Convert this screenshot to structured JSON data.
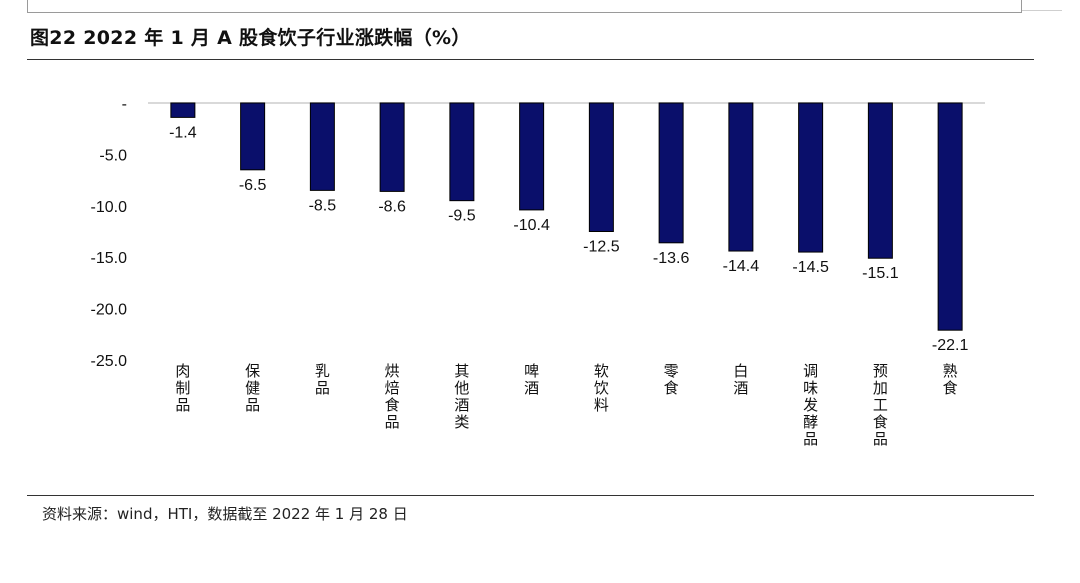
{
  "header": {
    "title": "图22 2022 年 1 月 A 股食饮子行业涨跌幅（%）"
  },
  "footer": {
    "source": "资料来源：wind，HTI，数据截至 2022 年 1 月 28 日"
  },
  "colors": {
    "bar_fill": "#0a0f6b",
    "bar_stroke": "#000000",
    "zero_line": "#d9d9d9"
  },
  "chart_data": {
    "type": "bar",
    "categories": [
      "肉制品",
      "保健品",
      "乳品",
      "烘焙食品",
      "其他酒类",
      "啤酒",
      "软饮料",
      "零食",
      "白酒",
      "调味发酵品",
      "预加工食品",
      "熟食"
    ],
    "values": [
      -1.4,
      -6.5,
      -8.5,
      -8.6,
      -9.5,
      -10.4,
      -12.5,
      -13.6,
      -14.4,
      -14.5,
      -15.1,
      -22.1
    ],
    "data_labels": [
      "-1.4",
      "-6.5",
      "-8.5",
      "-8.6",
      "-9.5",
      "-10.4",
      "-12.5",
      "-13.6",
      "-14.4",
      "-14.5",
      "-15.1",
      "-22.1"
    ],
    "y_ticks": [
      0,
      -5,
      -10,
      -15,
      -20,
      -25
    ],
    "y_tick_labels": [
      "-",
      "-5.0",
      "-10.0",
      "-15.0",
      "-20.0",
      "-25.0"
    ],
    "ylim": [
      -25,
      0
    ],
    "grid": false,
    "legend": "none"
  }
}
